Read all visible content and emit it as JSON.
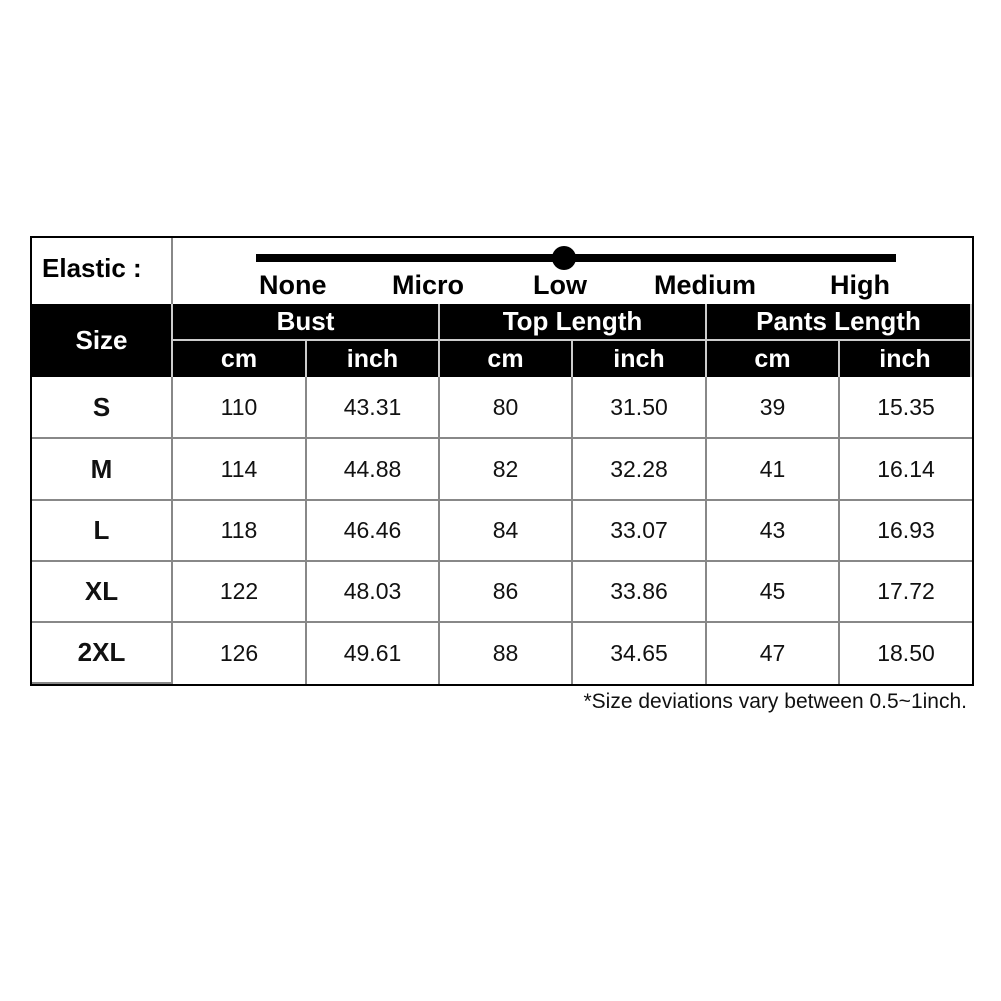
{
  "elastic": {
    "label": "Elastic :",
    "levels": [
      "None",
      "Micro",
      "Low",
      "Medium",
      "High"
    ],
    "selected": "Low",
    "selected_index": 2
  },
  "header": {
    "size": "Size",
    "groups": [
      "Bust",
      "Top Length",
      "Pants Length"
    ],
    "units": [
      "cm",
      "inch",
      "cm",
      "inch",
      "cm",
      "inch"
    ]
  },
  "rows": [
    {
      "size": "S",
      "values": [
        "110",
        "43.31",
        "80",
        "31.50",
        "39",
        "15.35"
      ]
    },
    {
      "size": "M",
      "values": [
        "114",
        "44.88",
        "82",
        "32.28",
        "41",
        "16.14"
      ]
    },
    {
      "size": "L",
      "values": [
        "118",
        "46.46",
        "84",
        "33.07",
        "43",
        "16.93"
      ]
    },
    {
      "size": "XL",
      "values": [
        "122",
        "48.03",
        "86",
        "33.86",
        "45",
        "17.72"
      ]
    },
    {
      "size": "2XL",
      "values": [
        "126",
        "49.61",
        "88",
        "34.65",
        "47",
        "18.50"
      ]
    }
  ],
  "note": "*Size deviations vary between 0.5~1inch."
}
